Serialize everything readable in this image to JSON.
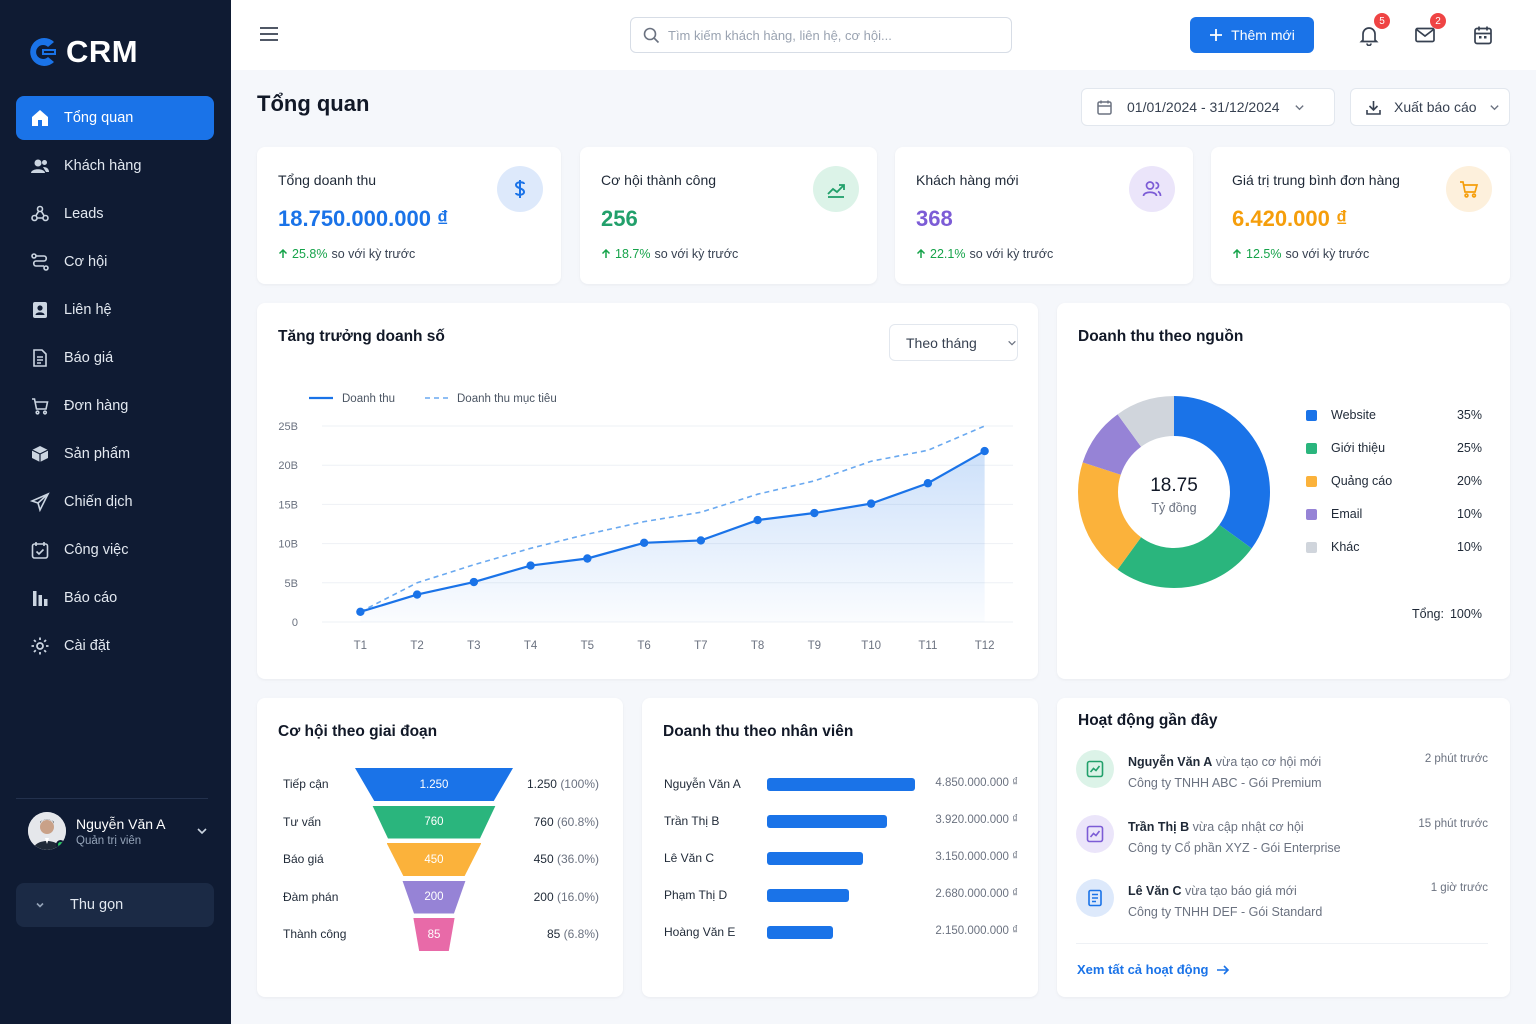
{
  "app": {
    "logo_text": "CRM"
  },
  "sidebar": {
    "items": [
      {
        "label": "Tổng quan",
        "icon": "home-icon",
        "active": true
      },
      {
        "label": "Khách hàng",
        "icon": "users-icon"
      },
      {
        "label": "Leads",
        "icon": "leads-icon"
      },
      {
        "label": "Cơ hội",
        "icon": "route-icon"
      },
      {
        "label": "Liên hệ",
        "icon": "contact-icon"
      },
      {
        "label": "Báo giá",
        "icon": "document-icon"
      },
      {
        "label": "Đơn hàng",
        "icon": "cart-icon"
      },
      {
        "label": "Sản phẩm",
        "icon": "box-icon"
      },
      {
        "label": "Chiến dịch",
        "icon": "send-icon"
      },
      {
        "label": "Công việc",
        "icon": "calendar-check-icon"
      },
      {
        "label": "Báo cáo",
        "icon": "bar-chart-icon"
      },
      {
        "label": "Cài đặt",
        "icon": "gear-icon"
      }
    ],
    "user": {
      "name": "Nguyễn Văn A",
      "role": "Quản trị viên"
    },
    "collapse_label": "Thu gọn"
  },
  "topbar": {
    "search_placeholder": "Tìm kiếm khách hàng, liên hệ, cơ hội...",
    "add_label": "Thêm mới",
    "notifications_count": "5",
    "messages_count": "2"
  },
  "page": {
    "title": "Tổng quan",
    "date_range": "01/01/2024 - 31/12/2024",
    "export_label": "Xuất báo cáo"
  },
  "kpis": [
    {
      "label": "Tổng doanh thu",
      "value": "18.750.000.000 ₫",
      "change": "25.8%",
      "change_text": "so với kỳ trước",
      "color": "#1a73e8",
      "icon": "dollar-icon"
    },
    {
      "label": "Cơ hội thành công",
      "value": "256",
      "change": "18.7%",
      "change_text": "so với kỳ trước",
      "color": "#22a06b",
      "icon": "trend-up-icon"
    },
    {
      "label": "Khách hàng mới",
      "value": "368",
      "change": "22.1%",
      "change_text": "so với kỳ trước",
      "color": "#7c5cd6",
      "icon": "users-icon"
    },
    {
      "label": "Giá trị trung bình đơn hàng",
      "value": "6.420.000 ₫",
      "change": "12.5%",
      "change_text": "so với kỳ trước",
      "color": "#f59e0b",
      "icon": "cart-icon"
    }
  ],
  "sales_chart": {
    "title": "Tăng trưởng doanh số",
    "period_label": "Theo tháng"
  },
  "chart_data": [
    {
      "type": "line",
      "x": [
        "T1",
        "T2",
        "T3",
        "T4",
        "T5",
        "T6",
        "T7",
        "T8",
        "T9",
        "T10",
        "T11",
        "T12"
      ],
      "series": [
        {
          "name": "Doanh thu",
          "values": [
            1.3,
            3.5,
            5.1,
            7.2,
            8.1,
            10.1,
            10.4,
            13.0,
            13.9,
            15.1,
            17.7,
            21.8
          ],
          "color": "#1a73e8",
          "style": "solid"
        },
        {
          "name": "Doanh thu mục tiêu",
          "values": [
            1.3,
            5.0,
            7.3,
            9.4,
            11.2,
            12.8,
            14.0,
            16.3,
            18.0,
            20.5,
            21.9,
            25.0
          ],
          "color": "#6aa9f0",
          "style": "dashed"
        }
      ],
      "yticks": [
        "0",
        "5B",
        "10B",
        "15B",
        "20B",
        "25B"
      ],
      "ylim": [
        0,
        25
      ],
      "area_fill": true
    },
    {
      "type": "pie",
      "title": "Doanh thu theo nguồn",
      "center_value": "18.75",
      "center_label": "Tỷ đồng",
      "slices": [
        {
          "label": "Website",
          "value": 35,
          "pct": "35%",
          "color": "#1a73e8"
        },
        {
          "label": "Giới thiệu",
          "value": 25,
          "pct": "25%",
          "color": "#2ab57d"
        },
        {
          "label": "Quảng cáo",
          "value": 20,
          "pct": "20%",
          "color": "#fbb23b"
        },
        {
          "label": "Email",
          "value": 10,
          "pct": "10%",
          "color": "#9683d6"
        },
        {
          "label": "Khác",
          "value": 10,
          "pct": "10%",
          "color": "#d0d5dc"
        }
      ],
      "total_label": "Tổng:",
      "total_value": "100%"
    },
    {
      "type": "bar",
      "title": "Cơ hội theo giai đoạn",
      "categories": [
        "Tiếp cận",
        "Tư vấn",
        "Báo giá",
        "Đàm phán",
        "Thành công"
      ],
      "values": [
        1250,
        760,
        450,
        200,
        85
      ],
      "labels": [
        "1.250",
        "760",
        "450",
        "200",
        "85"
      ],
      "percents": [
        "(100%)",
        "(60.8%)",
        "(36.0%)",
        "(16.0%)",
        "(6.8%)"
      ],
      "colors": [
        "#1a73e8",
        "#2ab57d",
        "#fbb23b",
        "#9683d6",
        "#e86aa8"
      ]
    },
    {
      "type": "bar",
      "title": "Doanh thu theo nhân viên",
      "categories": [
        "Nguyễn Văn A",
        "Trần Thị B",
        "Lê Văn C",
        "Phạm Thị D",
        "Hoàng Văn E"
      ],
      "values": [
        4850000000,
        3920000000,
        3150000000,
        2680000000,
        2150000000
      ],
      "labels": [
        "4.850.000.000 ₫",
        "3.920.000.000 ₫",
        "3.150.000.000 ₫",
        "2.680.000.000 ₫",
        "2.150.000.000 ₫"
      ]
    }
  ],
  "activities": {
    "title": "Hoạt động gần đây",
    "items": [
      {
        "actor": "Nguyễn Văn A",
        "action": "vừa tạo cơ hội mới",
        "detail": "Công ty TNHH ABC - Gói Premium",
        "time": "2 phút trước",
        "icon": "chart-box-icon",
        "color": "#2ab57d"
      },
      {
        "actor": "Trần Thị B",
        "action": "vừa cập nhật cơ hội",
        "detail": "Công ty Cổ phần XYZ - Gói Enterprise",
        "time": "15 phút trước",
        "icon": "chart-box-icon",
        "color": "#7c5cd6"
      },
      {
        "actor": "Lê Văn C",
        "action": "vừa tạo báo giá mới",
        "detail": "Công ty TNHH DEF - Gói Standard",
        "time": "1 giờ trước",
        "icon": "document-icon",
        "color": "#1a73e8"
      }
    ],
    "view_all": "Xem tất cả hoạt động"
  }
}
